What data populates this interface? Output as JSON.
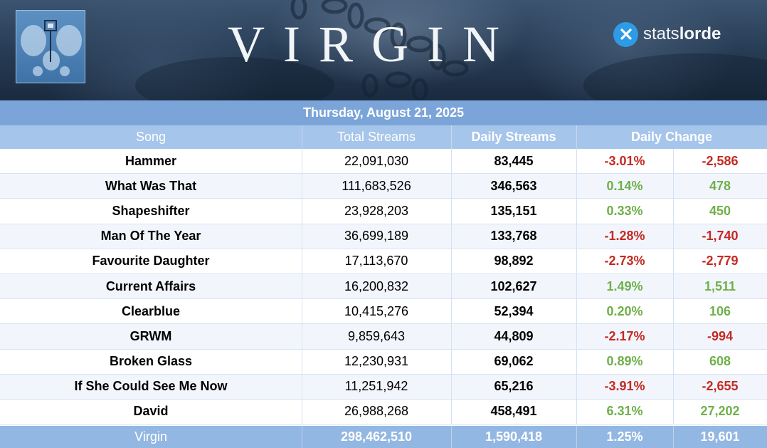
{
  "header": {
    "album_title": "VIRGIN",
    "brand_prefix": "stats",
    "brand_suffix": "lorde",
    "brand_icon": "x-logo-icon"
  },
  "date": "Thursday, August 21, 2025",
  "columns": {
    "song": "Song",
    "total": "Total Streams",
    "daily": "Daily Streams",
    "change": "Daily Change"
  },
  "rows": [
    {
      "song": "Hammer",
      "total": "22,091,030",
      "daily": "83,445",
      "pct": "-3.01%",
      "abs": "-2,586",
      "trend": "neg"
    },
    {
      "song": "What Was That",
      "total": "111,683,526",
      "daily": "346,563",
      "pct": "0.14%",
      "abs": "478",
      "trend": "pos"
    },
    {
      "song": "Shapeshifter",
      "total": "23,928,203",
      "daily": "135,151",
      "pct": "0.33%",
      "abs": "450",
      "trend": "pos"
    },
    {
      "song": "Man Of The Year",
      "total": "36,699,189",
      "daily": "133,768",
      "pct": "-1.28%",
      "abs": "-1,740",
      "trend": "neg"
    },
    {
      "song": "Favourite Daughter",
      "total": "17,113,670",
      "daily": "98,892",
      "pct": "-2.73%",
      "abs": "-2,779",
      "trend": "neg"
    },
    {
      "song": "Current Affairs",
      "total": "16,200,832",
      "daily": "102,627",
      "pct": "1.49%",
      "abs": "1,511",
      "trend": "pos"
    },
    {
      "song": "Clearblue",
      "total": "10,415,276",
      "daily": "52,394",
      "pct": "0.20%",
      "abs": "106",
      "trend": "pos"
    },
    {
      "song": "GRWM",
      "total": "9,859,643",
      "daily": "44,809",
      "pct": "-2.17%",
      "abs": "-994",
      "trend": "neg"
    },
    {
      "song": "Broken Glass",
      "total": "12,230,931",
      "daily": "69,062",
      "pct": "0.89%",
      "abs": "608",
      "trend": "pos"
    },
    {
      "song": "If She Could See Me Now",
      "total": "11,251,942",
      "daily": "65,216",
      "pct": "-3.91%",
      "abs": "-2,655",
      "trend": "neg"
    },
    {
      "song": "David",
      "total": "26,988,268",
      "daily": "458,491",
      "pct": "6.31%",
      "abs": "27,202",
      "trend": "pos"
    }
  ],
  "totals": {
    "song": "Virgin",
    "total": "298,462,510",
    "daily": "1,590,418",
    "pct": "1.25%",
    "abs": "19,601"
  },
  "colors": {
    "negative": "#c42a23",
    "positive": "#6fb04a",
    "date_bar": "#7ba4d8",
    "header_row": "#a6c5ea",
    "footer_row": "#93b7e3"
  }
}
